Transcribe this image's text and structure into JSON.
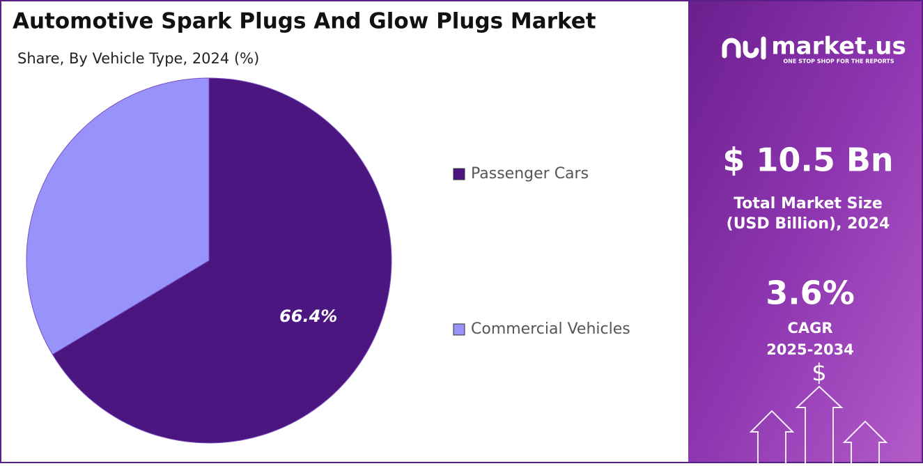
{
  "chart_data": {
    "type": "pie",
    "title": "Automotive Spark Plugs And Glow Plugs Market",
    "subtitle": "Share, By Vehicle Type, 2024 (%)",
    "categories": [
      "Passenger Cars",
      "Commercial Vehicles"
    ],
    "values": [
      66.4,
      33.6
    ],
    "value_labels": [
      "66.4%",
      null
    ],
    "colors": [
      "#4b1680",
      "#9892fb"
    ],
    "legend": "right"
  },
  "side_panel": {
    "logo": "market.us",
    "tagline": "ONE STOP SHOP FOR THE REPORTS",
    "market_size": "$ 10.5 Bn",
    "market_size_label": [
      "Total Market Size",
      "(USD Billion), 2024"
    ],
    "cagr": "3.6%",
    "cagr_label": "CAGR",
    "cagr_period": "2025-2034",
    "icon": "$"
  }
}
